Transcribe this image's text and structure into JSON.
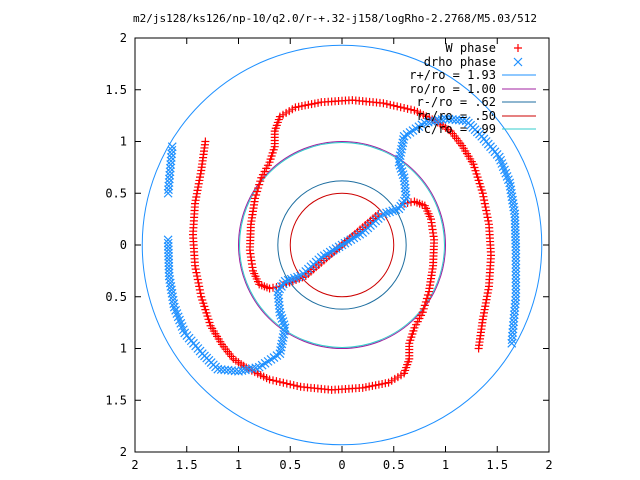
{
  "chart_data": {
    "type": "scatter",
    "title": "m2/js128/ks126/np-10/q2.0/r-+.32-j158/logRho-2.2768/M5.03/512",
    "xlim": [
      -2,
      2
    ],
    "ylim": [
      -2,
      2
    ],
    "x_ticks": [
      -2,
      -1.5,
      -1,
      -0.5,
      0,
      0.5,
      1,
      1.5,
      2
    ],
    "y_ticks": [
      -2,
      -1.5,
      -1,
      -0.5,
      0,
      0.5,
      1,
      1.5,
      2
    ],
    "x_tick_labels": [
      "2",
      "1.5",
      "1",
      "0.5",
      "0",
      "0.5",
      "1",
      "1.5",
      "2"
    ],
    "y_tick_labels": [
      "2",
      "1.5",
      "1",
      "0.5",
      "0",
      "0.5",
      "1",
      "1.5",
      "2"
    ],
    "grid": false,
    "legend_position": "top-right",
    "series": [
      {
        "name": "W phase",
        "marker": "plus",
        "color": "#ff0000",
        "points": [
          [
            -1.32,
            1.0
          ],
          [
            -1.36,
            0.72
          ],
          [
            -1.42,
            0.4
          ],
          [
            -1.44,
            0.1
          ],
          [
            -1.42,
            -0.2
          ],
          [
            -1.36,
            -0.5
          ],
          [
            -1.27,
            -0.78
          ],
          [
            -1.16,
            -0.96
          ],
          [
            -1.05,
            -1.1
          ],
          [
            -0.9,
            -1.2
          ],
          [
            -0.7,
            -1.3
          ],
          [
            -0.4,
            -1.37
          ],
          [
            -0.1,
            -1.4
          ],
          [
            0.2,
            -1.38
          ],
          [
            0.45,
            -1.33
          ],
          [
            0.6,
            -1.24
          ],
          [
            0.65,
            -1.1
          ],
          [
            0.65,
            -0.95
          ],
          [
            0.7,
            -0.8
          ],
          [
            0.78,
            -0.65
          ],
          [
            0.84,
            -0.45
          ],
          [
            0.88,
            -0.2
          ],
          [
            0.89,
            0.05
          ],
          [
            0.86,
            0.25
          ],
          [
            0.8,
            0.38
          ],
          [
            0.7,
            0.42
          ],
          [
            0.6,
            0.4
          ],
          [
            1.32,
            -1.0
          ],
          [
            1.36,
            -0.72
          ],
          [
            1.42,
            -0.4
          ],
          [
            1.44,
            -0.1
          ],
          [
            1.42,
            0.2
          ],
          [
            1.36,
            0.5
          ],
          [
            1.27,
            0.78
          ],
          [
            1.16,
            0.96
          ],
          [
            1.05,
            1.1
          ],
          [
            0.9,
            1.2
          ],
          [
            0.7,
            1.3
          ],
          [
            0.4,
            1.37
          ],
          [
            0.1,
            1.4
          ],
          [
            -0.2,
            1.38
          ],
          [
            -0.45,
            1.33
          ],
          [
            -0.6,
            1.24
          ],
          [
            -0.65,
            1.1
          ],
          [
            -0.65,
            0.95
          ],
          [
            -0.7,
            0.8
          ],
          [
            -0.78,
            0.65
          ],
          [
            -0.84,
            0.45
          ],
          [
            -0.88,
            0.2
          ],
          [
            -0.89,
            -0.05
          ],
          [
            -0.86,
            -0.25
          ],
          [
            -0.8,
            -0.38
          ],
          [
            -0.7,
            -0.42
          ],
          [
            -0.6,
            -0.4
          ],
          [
            -0.35,
            -0.3
          ],
          [
            0.0,
            0.0
          ],
          [
            0.35,
            0.3
          ]
        ]
      },
      {
        "name": "drho phase",
        "marker": "cross",
        "color": "#1e90ff",
        "points": [
          [
            -1.68,
            0.05
          ],
          [
            -1.67,
            -0.3
          ],
          [
            -1.62,
            -0.6
          ],
          [
            -1.52,
            -0.85
          ],
          [
            -1.35,
            -1.05
          ],
          [
            -1.2,
            -1.2
          ],
          [
            -1.0,
            -1.22
          ],
          [
            -0.8,
            -1.18
          ],
          [
            -0.6,
            -1.05
          ],
          [
            -0.55,
            -0.8
          ],
          [
            -0.6,
            -0.65
          ],
          [
            -0.62,
            -0.45
          ],
          [
            -0.55,
            -0.35
          ],
          [
            -0.4,
            -0.3
          ],
          [
            -0.2,
            -0.12
          ],
          [
            0.0,
            0.0
          ],
          [
            0.2,
            0.12
          ],
          [
            0.4,
            0.3
          ],
          [
            0.55,
            0.35
          ],
          [
            0.62,
            0.45
          ],
          [
            0.6,
            0.65
          ],
          [
            0.55,
            0.8
          ],
          [
            0.6,
            1.05
          ],
          [
            0.8,
            1.18
          ],
          [
            1.0,
            1.22
          ],
          [
            1.2,
            1.2
          ],
          [
            1.35,
            1.05
          ],
          [
            1.52,
            0.85
          ],
          [
            1.62,
            0.6
          ],
          [
            1.67,
            0.3
          ],
          [
            1.68,
            -0.05
          ],
          [
            1.68,
            -0.5
          ],
          [
            1.64,
            -0.95
          ],
          [
            -1.64,
            0.95
          ],
          [
            -1.68,
            0.5
          ]
        ]
      }
    ],
    "circles": [
      {
        "name": "r+/ro = 1.93",
        "radius": 1.93,
        "color": "#1e90ff"
      },
      {
        "name": "ro/ro = 1.00",
        "radius": 1.0,
        "color": "#a020a0"
      },
      {
        "name": "r-/ro = .62",
        "radius": 0.62,
        "color": "#1e6ea0"
      },
      {
        "name": "rc/ro = .50",
        "radius": 0.5,
        "color": "#cc0000"
      },
      {
        "name": "rc/ro = .99",
        "radius": 0.99,
        "color": "#33cccc"
      }
    ]
  }
}
